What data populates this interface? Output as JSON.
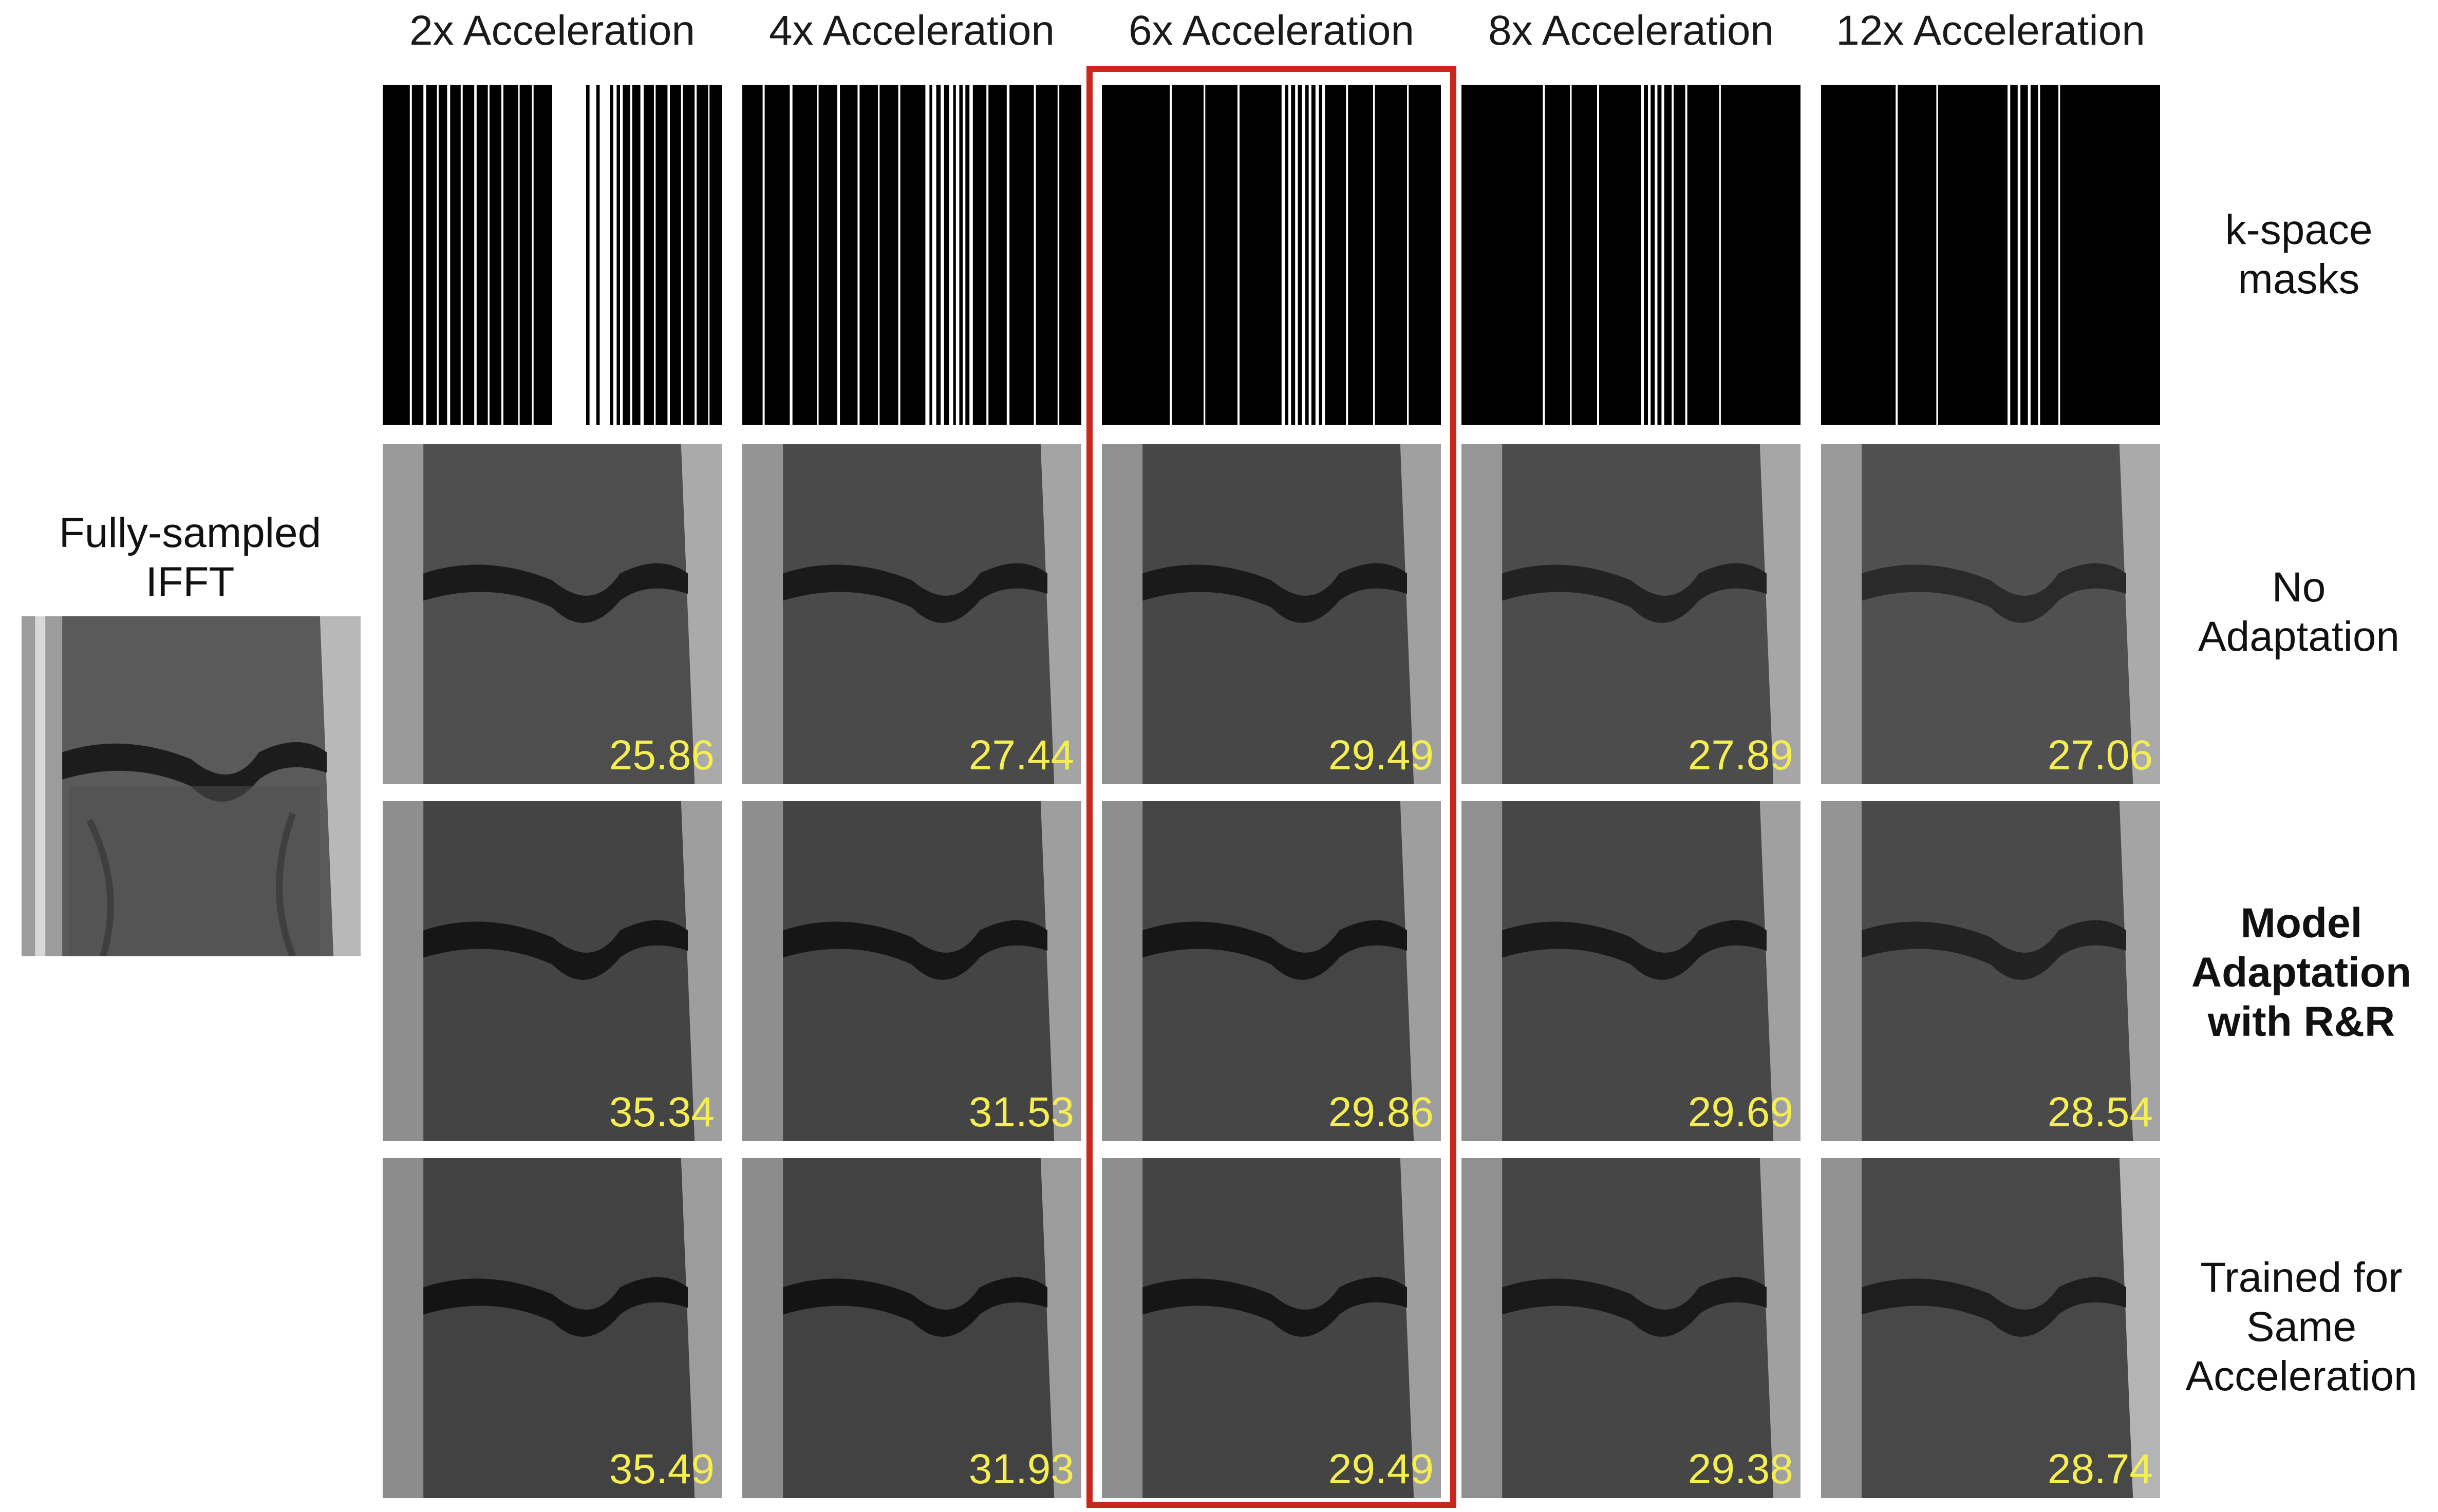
{
  "reference": {
    "label_line1": "Fully-sampled",
    "label_line2": "IFFT"
  },
  "columns": [
    {
      "header": "2x Acceleration"
    },
    {
      "header": "4x Acceleration"
    },
    {
      "header": "6x Acceleration"
    },
    {
      "header": "8x Acceleration"
    },
    {
      "header": "12x Acceleration"
    }
  ],
  "rows": {
    "masks": {
      "label_line1": "k-space",
      "label_line2": "masks"
    },
    "no_adaptation": {
      "label_line1": "No",
      "label_line2": "Adaptation",
      "psnr": [
        "25.86",
        "27.44",
        "29.49",
        "27.89",
        "27.06"
      ]
    },
    "model_adaptation": {
      "label_line1": "Model",
      "label_line2": "Adaptation",
      "label_line3": "with R&R",
      "psnr": [
        "35.34",
        "31.53",
        "29.86",
        "29.69",
        "28.54"
      ]
    },
    "trained_same": {
      "label_line1": "Trained for",
      "label_line2": "Same",
      "label_line3": "Acceleration",
      "psnr": [
        "35.49",
        "31.93",
        "29.49",
        "29.38",
        "28.74"
      ]
    }
  },
  "highlighted_column": "6x Acceleration",
  "colors": {
    "highlight_box": "#c8281c",
    "psnr_text": "#f4ee52",
    "mask_background": "#000000",
    "mask_lines": "#ffffff"
  }
}
